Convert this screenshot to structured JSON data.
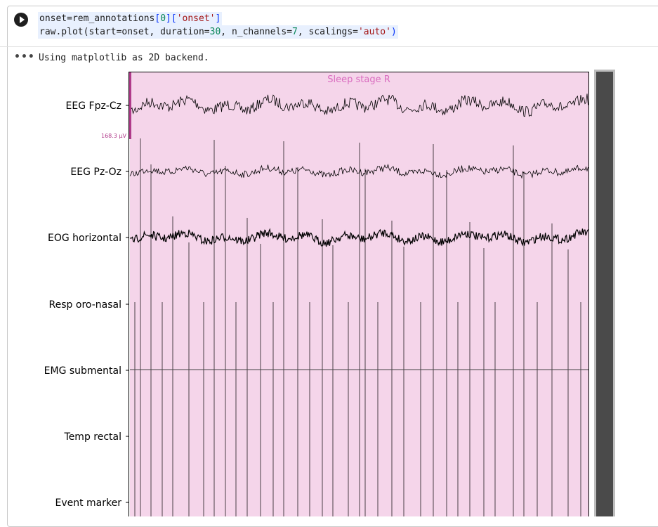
{
  "code": {
    "line1": {
      "a": "onset=rem_annotations",
      "b": "[",
      "c": "0",
      "d": "]",
      "e": "[",
      "f": "'onset'",
      "g": "]"
    },
    "line2": {
      "a": "raw.plot(start=onset, duration=",
      "b": "30",
      "c": ", n_channels=",
      "d": "7",
      "e": ", scalings=",
      "f": "'auto'",
      "g": ")"
    }
  },
  "output": {
    "menu_glyph": "•••",
    "text": "Using matplotlib as 2D backend."
  },
  "plot": {
    "annotation_label": "Sleep stage R",
    "scale_label": "168.3 µV",
    "channels": [
      "EEG Fpz-Cz",
      "EEG Pz-Oz",
      "EOG horizontal",
      "Resp oro-nasal",
      "EMG submental",
      "Temp rectal",
      "Event marker"
    ],
    "colors": {
      "annotation_fill": "#f5d5ea",
      "annotation_label": "#d96bbf",
      "scale_bar": "#b03a8a",
      "trace": "#000000",
      "scrollbar_track": "#4a4a4a",
      "scrollbar_border": "#bdbdbd"
    }
  }
}
